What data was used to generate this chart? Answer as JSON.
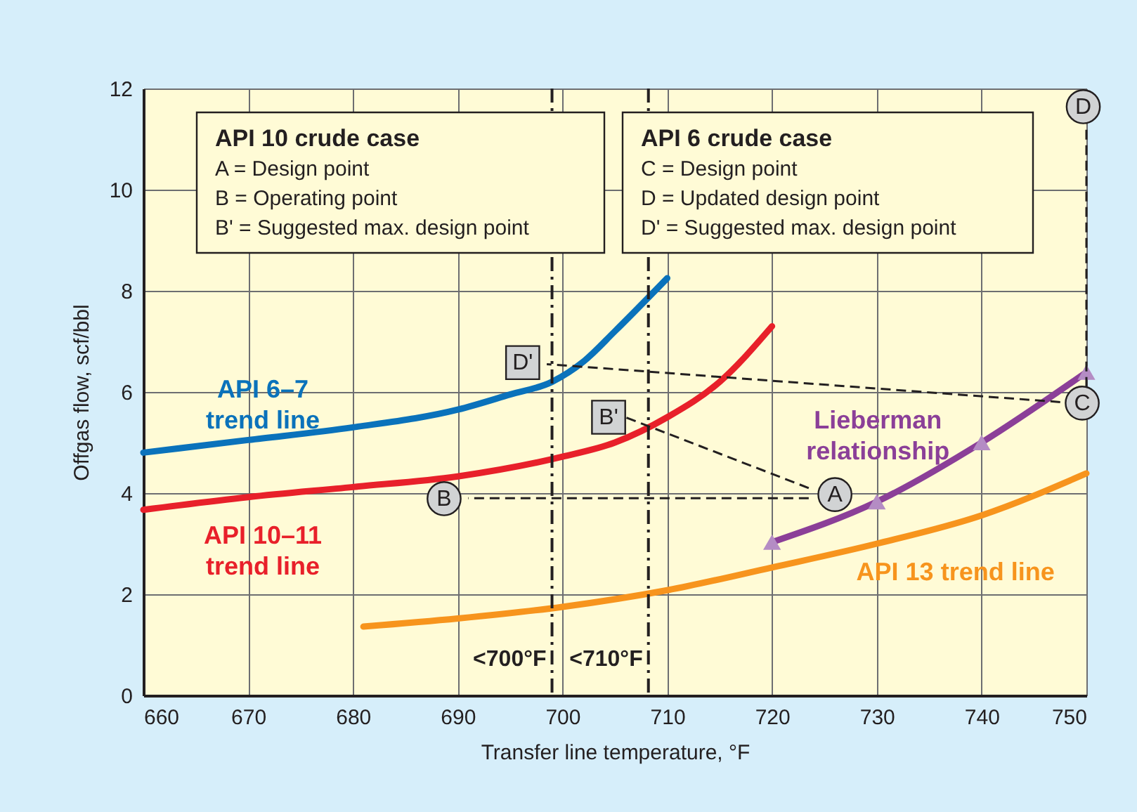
{
  "chart_data": {
    "type": "line",
    "xlabel": "Transfer line temperature, °F",
    "ylabel": "Offgas flow, scf/bbl",
    "xlim": [
      660,
      750
    ],
    "xticks": [
      660,
      670,
      680,
      690,
      700,
      710,
      720,
      730,
      740,
      750
    ],
    "ylim": [
      0,
      12
    ],
    "yticks": [
      0,
      2,
      4,
      6,
      8,
      10,
      12
    ],
    "grid": true,
    "series": [
      {
        "name": "API 6–7 trend line",
        "color": "#0a72bb",
        "x": [
          660,
          670,
          680,
          690,
          695,
          699,
          702,
          705,
          710
        ],
        "values": [
          4.8,
          5.05,
          5.3,
          5.65,
          5.95,
          6.2,
          6.6,
          7.2,
          8.25
        ]
      },
      {
        "name": "API 10–11 trend line",
        "color": "#e8202a",
        "x": [
          660,
          670,
          680,
          690,
          700,
          705,
          710,
          715,
          720
        ],
        "values": [
          3.67,
          3.92,
          4.12,
          4.33,
          4.72,
          5.0,
          5.5,
          6.2,
          7.3
        ]
      },
      {
        "name": "Lieberman relationship",
        "color": "#8b3f98",
        "marker": "triangle",
        "x": [
          720,
          730,
          740,
          750
        ],
        "values": [
          3.03,
          3.83,
          5.0,
          6.39
        ]
      },
      {
        "name": "API 13 trend line",
        "color": "#f7941d",
        "x": [
          681,
          690,
          700,
          710,
          720,
          730,
          740,
          750
        ],
        "values": [
          1.36,
          1.52,
          1.75,
          2.08,
          2.53,
          3.0,
          3.56,
          4.39
        ]
      },
      {
        "color": "#231f20",
        "line_style": "dashed",
        "x": [
          723.5,
          691
        ],
        "values": [
          3.9,
          3.9
        ]
      },
      {
        "color": "#231f20",
        "line_style": "dashed",
        "x": [
          723.5,
          706
        ],
        "values": [
          4.1,
          5.5
        ]
      },
      {
        "color": "#231f20",
        "line_style": "dashed",
        "x": [
          747.5,
          698.5
        ],
        "values": [
          5.8,
          6.55
        ]
      },
      {
        "color": "#231f20",
        "line_style": "dashed",
        "x": [
          750,
          750
        ],
        "values": [
          6.1,
          11.3
        ]
      }
    ],
    "ref_lines": [
      {
        "axis": "x",
        "value": 699,
        "label": "<700°F",
        "color": "#231f20",
        "line_style": "dashed"
      },
      {
        "axis": "x",
        "value": 708.2,
        "label": "<710°F",
        "color": "#231f20",
        "line_style": "dashed"
      }
    ],
    "annotations": [
      "API 10 crude case",
      "A = Design point",
      "B = Operating point",
      "B' = Suggested max. design point",
      "API 6 crude case",
      "C = Design point",
      "D = Updated design point",
      "D' = Suggested max. design point",
      {
        "text": "A",
        "x": 726,
        "y": 3.97
      },
      {
        "text": "B",
        "x": 688.7,
        "y": 3.89
      },
      {
        "text": "B'",
        "x": 704.4,
        "y": 5.5
      },
      {
        "text": "C",
        "x": 749.6,
        "y": 5.78
      },
      {
        "text": "D",
        "x": 749.7,
        "y": 11.64
      },
      {
        "text": "D'",
        "x": 696.2,
        "y": 6.58
      }
    ]
  }
}
